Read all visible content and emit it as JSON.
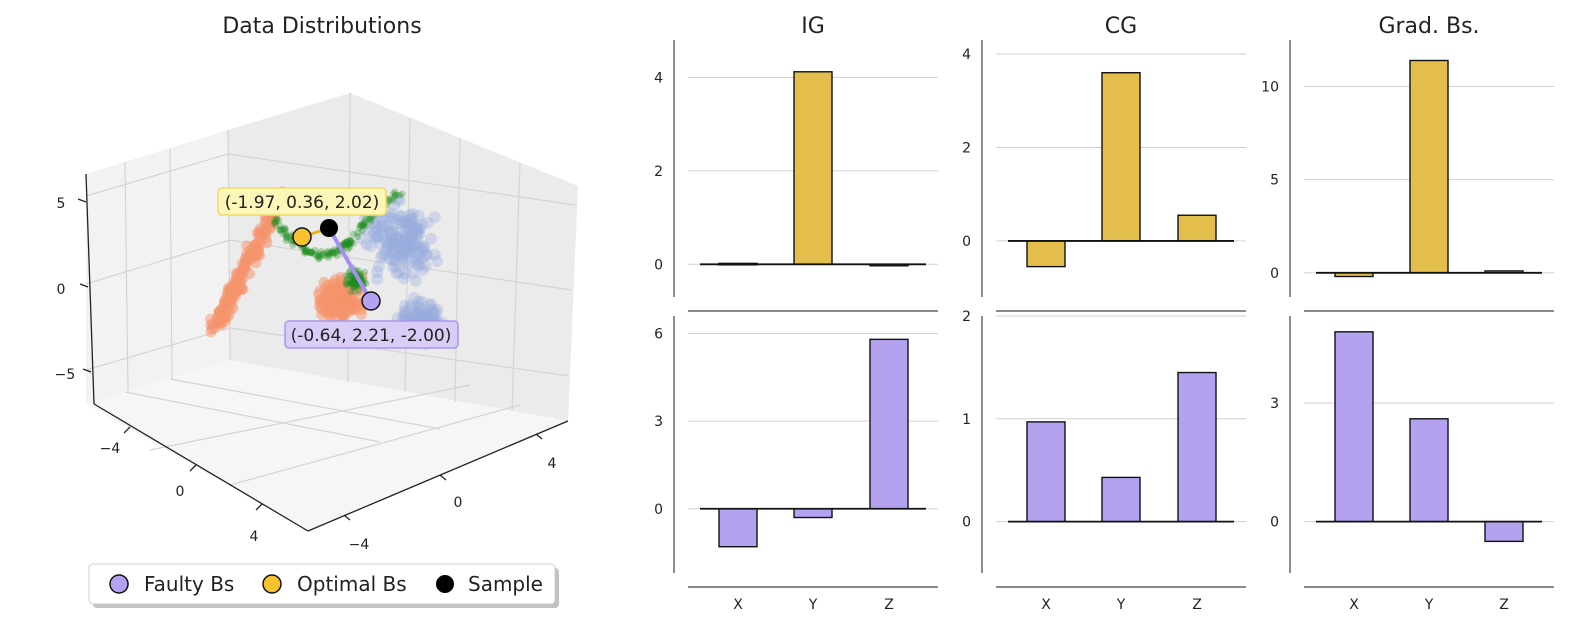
{
  "colors": {
    "faulty": "#b4a2f0",
    "optimal": "#f7c22e",
    "sample": "#000000",
    "bar_top": "#e3be4c",
    "bar_bottom": "#b4a2f0",
    "scatter_orange": "#f6936b",
    "scatter_blue": "#98acdd",
    "scatter_green": "#1f8f1f"
  },
  "legend": {
    "faulty": "Faulty Bs",
    "optimal": "Optimal Bs",
    "sample": "Sample"
  },
  "chart_data": [
    {
      "type": "scatter3d",
      "title": "Data Distributions",
      "z_ticks": [
        "5",
        "0",
        "−5"
      ],
      "y_ticks": [
        "−4",
        "0",
        "4"
      ],
      "x_ticks": [
        "−4",
        "0",
        "4"
      ],
      "annotations": [
        {
          "label": "(-1.97, 0.36, 2.02)",
          "point": [
            -1.97,
            0.36,
            2.02
          ],
          "kind": "optimal"
        },
        {
          "label": "(-0.64, 2.21, -2.00)",
          "point": [
            -0.64,
            2.21,
            -2.0
          ],
          "kind": "faulty"
        }
      ]
    },
    {
      "type": "bar",
      "title": "IG",
      "categories": [
        "X",
        "Y",
        "Z"
      ],
      "series": [
        {
          "name": "Optimal Bs",
          "values": [
            0.02,
            4.12,
            -0.02
          ],
          "ylim": [
            -0.7,
            4.8
          ],
          "ticks": [
            0,
            2,
            4
          ]
        },
        {
          "name": "Faulty Bs",
          "values": [
            -1.3,
            -0.3,
            5.8
          ],
          "ylim": [
            -2.2,
            6.6
          ],
          "ticks": [
            0,
            3,
            6
          ]
        }
      ]
    },
    {
      "type": "bar",
      "title": "CG",
      "categories": [
        "X",
        "Y",
        "Z"
      ],
      "series": [
        {
          "name": "Optimal Bs",
          "values": [
            -0.55,
            3.6,
            0.55
          ],
          "ylim": [
            -1.2,
            4.3
          ],
          "ticks": [
            0,
            2,
            4
          ]
        },
        {
          "name": "Faulty Bs",
          "values": [
            0.97,
            0.43,
            1.45
          ],
          "ylim": [
            -0.5,
            2.0
          ],
          "ticks": [
            0,
            1,
            2
          ]
        }
      ]
    },
    {
      "type": "bar",
      "title": "Grad. Bs.",
      "categories": [
        "X",
        "Y",
        "Z"
      ],
      "series": [
        {
          "name": "Optimal Bs",
          "values": [
            -0.2,
            11.4,
            0.1
          ],
          "ylim": [
            -1.3,
            12.5
          ],
          "ticks": [
            0,
            5,
            10
          ]
        },
        {
          "name": "Faulty Bs",
          "values": [
            4.8,
            2.6,
            -0.5
          ],
          "ylim": [
            -1.3,
            5.2
          ],
          "ticks": [
            0,
            3
          ]
        }
      ]
    }
  ]
}
